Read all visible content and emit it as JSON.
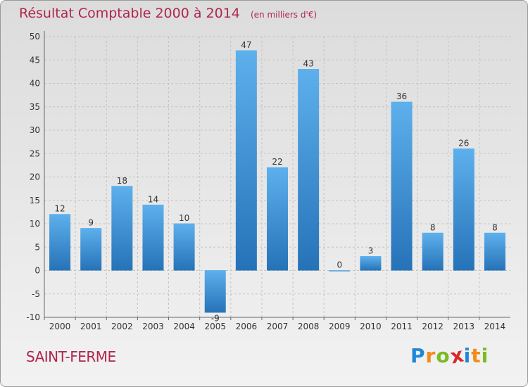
{
  "chart_data": {
    "type": "bar",
    "title": "Résultat Comptable 2000 à 2014",
    "subtitle": "(en milliers d'€)",
    "categories": [
      "2000",
      "2001",
      "2002",
      "2003",
      "2004",
      "2005",
      "2006",
      "2007",
      "2008",
      "2009",
      "2010",
      "2011",
      "2012",
      "2013",
      "2014"
    ],
    "values": [
      12,
      9,
      18,
      14,
      10,
      -9,
      47,
      22,
      43,
      0,
      3,
      36,
      8,
      26,
      8
    ],
    "yticks": [
      -10,
      -5,
      0,
      5,
      10,
      15,
      20,
      25,
      30,
      35,
      40,
      45,
      50
    ],
    "ylim": [
      -10,
      50
    ],
    "grid": true,
    "legend": "none",
    "xlabel": "",
    "ylabel": ""
  },
  "commune": "SAINT-FERME",
  "logo": {
    "letters": [
      "P",
      "r",
      "o",
      "x",
      "i",
      "t",
      "i"
    ],
    "colors": [
      "#1e88d6",
      "#f28c1a",
      "#7cbb22",
      "#d6282e",
      "#1e88d6",
      "#f28c1a",
      "#7cbb22"
    ]
  },
  "colors": {
    "bar": "#3a95d9",
    "bar_light": "#5db0ec",
    "bar_dark": "#2672b8",
    "title": "#b0264e"
  }
}
